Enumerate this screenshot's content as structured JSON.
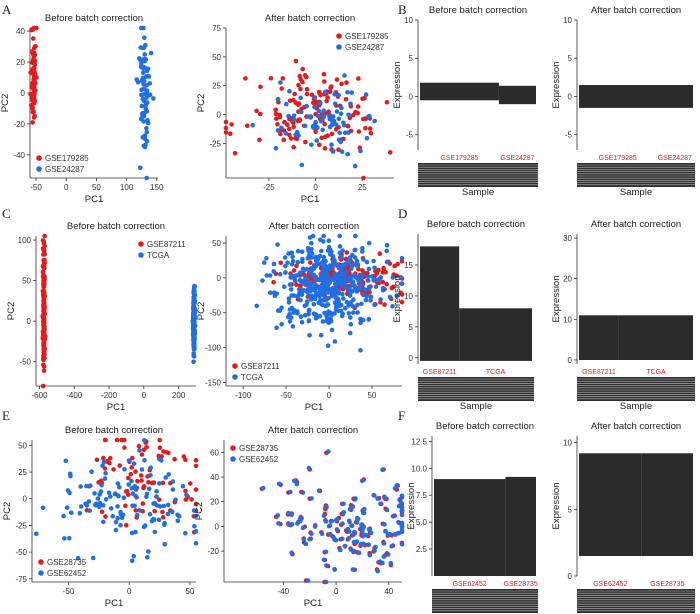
{
  "panel_labels": [
    "A",
    "B",
    "C",
    "D",
    "E",
    "F"
  ],
  "colors": {
    "red": "#e41a1c",
    "blue": "#1f6fe5",
    "bar": "#2b2b2b"
  },
  "chart_data": [
    {
      "id": "A1",
      "type": "scatter",
      "title": "Before batch correction",
      "xlabel": "PC1",
      "ylabel": "PC2",
      "xlim": [
        -60,
        152
      ],
      "ylim": [
        -55,
        42
      ],
      "xticks": [
        -50,
        0,
        50,
        100,
        150
      ],
      "yticks": [
        -40,
        -20,
        0,
        20,
        40
      ],
      "xtick_labels": [
        "-50",
        "0",
        "50",
        "100",
        "150"
      ],
      "ytick_labels": [
        "-40",
        "-20",
        "0",
        "20",
        "40"
      ],
      "legend": "bottom-left",
      "series": [
        {
          "name": "GSE179285",
          "color": "red",
          "gen": {
            "n": 70,
            "cx": -54,
            "sx": 2,
            "cy": 12,
            "sy": 18,
            "seed": 11
          }
        },
        {
          "name": "GSE24287",
          "color": "blue",
          "gen": {
            "n": 80,
            "cx": 130,
            "sx": 5,
            "cy": 0,
            "sy": 22,
            "seed": 12
          }
        }
      ]
    },
    {
      "id": "A2",
      "type": "scatter",
      "title": "After batch correction",
      "xlabel": "PC1",
      "ylabel": "PC2",
      "xlim": [
        -48,
        42
      ],
      "ylim": [
        -55,
        75
      ],
      "xticks": [
        -25,
        0,
        25
      ],
      "yticks": [
        -25,
        0,
        25,
        50,
        75
      ],
      "xtick_labels": [
        "-25",
        "0",
        "25"
      ],
      "ytick_labels": [
        "-25",
        "0",
        "25",
        "50",
        "75"
      ],
      "legend": "top-right",
      "series": [
        {
          "name": "GSE179285",
          "color": "red",
          "gen": {
            "n": 150,
            "cx": 0,
            "sx": 18,
            "cy": 0,
            "sy": 18,
            "seed": 21
          }
        },
        {
          "name": "GSE24287",
          "color": "blue",
          "gen": {
            "n": 80,
            "cx": 2,
            "sx": 12,
            "cy": -4,
            "sy": 15,
            "seed": 22
          }
        }
      ]
    },
    {
      "id": "B1",
      "type": "bar",
      "title": "Before batch correction",
      "ylabel": "Expression",
      "xlabel": "Sample",
      "ylim": [
        -7,
        10
      ],
      "yticks": [
        -5,
        0,
        5,
        10
      ],
      "ytick_labels": [
        "-5",
        "0",
        "5",
        "10"
      ],
      "groups": [
        {
          "name": "GSE179285",
          "value": 1.8,
          "share": 0.68
        },
        {
          "name": "GSE24287",
          "value": -1.0,
          "share": 0.32,
          "base": 1.4
        }
      ]
    },
    {
      "id": "B2",
      "type": "bar",
      "title": "After batch correction",
      "ylabel": "Expression",
      "xlabel": "Sample",
      "ylim": [
        -7,
        10
      ],
      "yticks": [
        -5,
        0,
        5,
        10
      ],
      "ytick_labels": [
        "-5",
        "0",
        "5",
        "10"
      ],
      "groups": [
        {
          "name": "GSE179285",
          "value": 0.0,
          "share": 0.68
        },
        {
          "name": "GSE24287",
          "value": 0.0,
          "share": 0.32
        }
      ],
      "band": [
        -1.5,
        1.5
      ]
    },
    {
      "id": "C1",
      "type": "scatter",
      "title": "Before batch correction",
      "xlabel": "PC1",
      "ylabel": "PC2",
      "xlim": [
        -620,
        300
      ],
      "ylim": [
        -80,
        105
      ],
      "xticks": [
        -600,
        -400,
        -200,
        0,
        200
      ],
      "yticks": [
        -50,
        0,
        50,
        100
      ],
      "xtick_labels": [
        "-600",
        "-400",
        "-200",
        "0",
        "200"
      ],
      "ytick_labels": [
        "-50",
        "0",
        "50",
        "100"
      ],
      "legend": "top-right",
      "series": [
        {
          "name": "GSE87211",
          "color": "red",
          "gen": {
            "n": 180,
            "cx": -575,
            "sx": 3,
            "cy": 12,
            "sy": 40,
            "seed": 31
          }
        },
        {
          "name": "TCGA",
          "color": "blue",
          "gen": {
            "n": 280,
            "cx": 288,
            "sx": 2.5,
            "cy": 0,
            "sy": 18,
            "seed": 32
          }
        }
      ]
    },
    {
      "id": "C2",
      "type": "scatter",
      "title": "After batch correction",
      "xlabel": "PC1",
      "ylabel": "PC2",
      "xlim": [
        -120,
        85
      ],
      "ylim": [
        -155,
        60
      ],
      "xticks": [
        -100,
        -50,
        0,
        50
      ],
      "yticks": [
        -150,
        -100,
        -50,
        0,
        50
      ],
      "xtick_labels": [
        "-100",
        "-50",
        "0",
        "50"
      ],
      "ytick_labels": [
        "-150",
        "-100",
        "-50",
        "0",
        "50"
      ],
      "legend": "bottom-left",
      "series": [
        {
          "name": "GSE87211",
          "color": "red",
          "gen": {
            "n": 200,
            "cx": 20,
            "sx": 35,
            "cy": 0,
            "sy": 15,
            "seed": 41
          }
        },
        {
          "name": "TCGA",
          "color": "blue",
          "gen": {
            "n": 420,
            "cx": 0,
            "sx": 32,
            "cy": -10,
            "sy": 35,
            "seed": 42
          }
        }
      ]
    },
    {
      "id": "D1",
      "type": "bar",
      "title": "Before batch correction",
      "ylabel": "Expression",
      "xlabel": "Sample",
      "ylim": [
        -1,
        20
      ],
      "yticks": [
        0,
        5,
        10,
        15
      ],
      "ytick_labels": [
        "0",
        "5",
        "10",
        "15"
      ],
      "groups": [
        {
          "name": "GSE87211",
          "value": 18,
          "share": 0.35
        },
        {
          "name": "TCGA",
          "value": 8,
          "share": 0.65
        }
      ]
    },
    {
      "id": "D2",
      "type": "bar",
      "title": "After batch correction",
      "ylabel": "Expression",
      "xlabel": "Sample",
      "ylim": [
        -1,
        31
      ],
      "yticks": [
        0,
        10,
        20,
        30
      ],
      "ytick_labels": [
        "0",
        "10",
        "20",
        "30"
      ],
      "groups": [
        {
          "name": "GSE87211",
          "value": 11,
          "share": 0.35
        },
        {
          "name": "TCGA",
          "value": 11,
          "share": 0.65
        }
      ],
      "band": [
        0,
        11
      ]
    },
    {
      "id": "E1",
      "type": "scatter",
      "title": "Before batch correction",
      "xlabel": "PC1",
      "ylabel": "PC2",
      "xlim": [
        -80,
        55
      ],
      "ylim": [
        -78,
        55
      ],
      "xticks": [
        -50,
        0,
        50
      ],
      "yticks": [
        -75,
        -50,
        -25,
        0,
        25,
        50
      ],
      "xtick_labels": [
        "-50",
        "0",
        "50"
      ],
      "ytick_labels": [
        "-75",
        "-50",
        "-25",
        "0",
        "25",
        "50"
      ],
      "legend": "bottom-left",
      "series": [
        {
          "name": "GSE28735",
          "color": "red",
          "gen": {
            "n": 90,
            "cx": 10,
            "sx": 28,
            "cy": 20,
            "sy": 25,
            "seed": 51
          }
        },
        {
          "name": "GSE62452",
          "color": "blue",
          "gen": {
            "n": 130,
            "cx": 0,
            "sx": 28,
            "cy": -5,
            "sy": 25,
            "seed": 52
          }
        }
      ]
    },
    {
      "id": "E2",
      "type": "scatter",
      "title": "After batch correction",
      "xlabel": "PC1",
      "ylabel": "PC2",
      "xlim": [
        -85,
        50
      ],
      "ylim": [
        -45,
        70
      ],
      "xticks": [
        -40,
        0,
        40
      ],
      "yticks": [
        -20,
        0,
        20,
        40,
        60
      ],
      "xtick_labels": [
        "-40",
        "0",
        "40"
      ],
      "ytick_labels": [
        "-20",
        "0",
        "20",
        "40",
        "60"
      ],
      "legend": "top-left",
      "series": [
        {
          "name": "GSE28735",
          "color": "red",
          "gen": {
            "n": 130,
            "cx": 10,
            "sx": 30,
            "cy": 5,
            "sy": 22,
            "seed": 61
          }
        },
        {
          "name": "GSE62452",
          "color": "blue",
          "gen": {
            "n": 130,
            "cx": 10,
            "sx": 30,
            "cy": 5,
            "sy": 22,
            "seed": 61,
            "jitter": 1.5
          }
        }
      ]
    },
    {
      "id": "F1",
      "type": "bar",
      "title": "Before batch correction",
      "ylabel": "Expression",
      "xlabel": "Sample",
      "ylim": [
        0,
        13
      ],
      "yticks": [
        2.5,
        5.0,
        7.5,
        10.0,
        12.5
      ],
      "ytick_labels": [
        "2.5",
        "5.0",
        "7.5",
        "10.0",
        "12.5"
      ],
      "groups": [
        {
          "name": "GSE62452",
          "value": 9.0,
          "share": 0.7
        },
        {
          "name": "GSE28735",
          "value": 9.2,
          "share": 0.3
        }
      ]
    },
    {
      "id": "F2",
      "type": "bar",
      "title": "After batch correction",
      "ylabel": "Expression",
      "xlabel": "Sample",
      "ylim": [
        0,
        10.5
      ],
      "yticks": [
        0,
        5,
        10
      ],
      "ytick_labels": [
        "0",
        "5",
        "10"
      ],
      "groups": [
        {
          "name": "GSE62452",
          "value": 9.2,
          "share": 0.55
        },
        {
          "name": "GSE28735",
          "value": 9.2,
          "share": 0.45
        }
      ],
      "band": [
        1.5,
        9.2
      ]
    }
  ]
}
